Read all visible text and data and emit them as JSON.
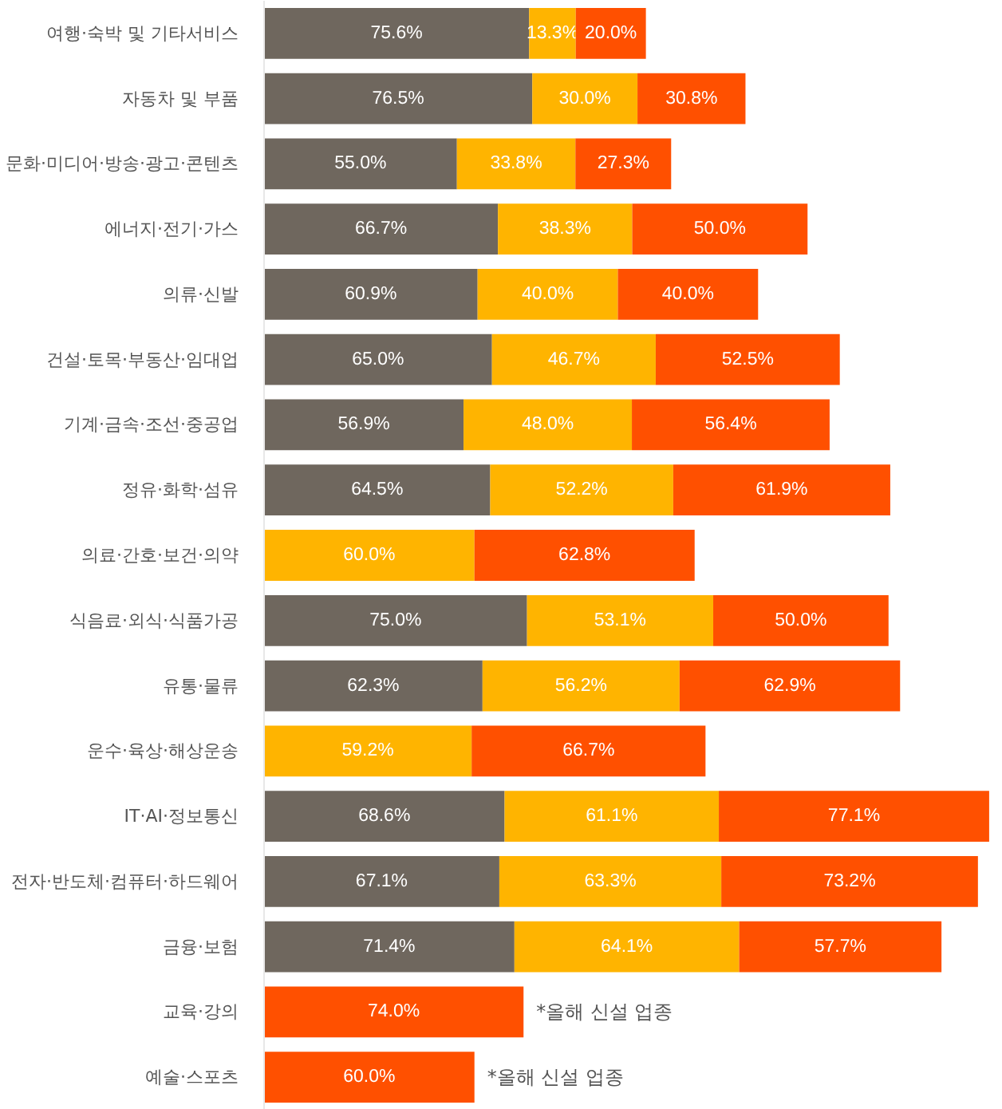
{
  "chart_data": {
    "type": "bar",
    "orientation": "horizontal",
    "stacked": true,
    "grid": false,
    "categories": [
      "여행·숙박 및 기타서비스",
      "자동차 및 부품",
      "문화·미디어·방송·광고·콘텐츠",
      "에너지·전기·가스",
      "의류·신발",
      "건설·토목·부동산·임대업",
      "기계·금속·조선·중공업",
      "정유·화학·섬유",
      "의료·간호·보건·의약",
      "식음료·외식·식품가공",
      "유통·물류",
      "운수·육상·해상운송",
      "IT·AI·정보통신",
      "전자·반도체·컴퓨터·하드웨어",
      "금융·보험",
      "교육·강의",
      "예술·스포츠"
    ],
    "series": [
      {
        "color": "#6f675e",
        "values": [
          75.6,
          76.5,
          55.0,
          66.7,
          60.9,
          65.0,
          56.9,
          64.5,
          null,
          75.0,
          62.3,
          null,
          68.6,
          67.1,
          71.4,
          null,
          null
        ],
        "value_labels": [
          "75.6%",
          "76.5%",
          "55.0%",
          "66.7%",
          "60.9%",
          "65.0%",
          "56.9%",
          "64.5%",
          null,
          "75.0%",
          "62.3%",
          null,
          "68.6%",
          "67.1%",
          "71.4%",
          null,
          null
        ]
      },
      {
        "color": "#ffb400",
        "values": [
          13.3,
          30.0,
          33.8,
          38.3,
          40.0,
          46.7,
          48.0,
          52.2,
          60.0,
          53.1,
          56.2,
          59.2,
          61.1,
          63.3,
          64.1,
          null,
          null
        ],
        "value_labels": [
          "13.3%",
          "30.0%",
          "33.8%",
          "38.3%",
          "40.0%",
          "46.7%",
          "48.0%",
          "52.2%",
          "60.0%",
          "53.1%",
          "56.2%",
          "59.2%",
          "61.1%",
          "63.3%",
          "64.1%",
          null,
          null
        ]
      },
      {
        "color": "#ff5000",
        "values": [
          20.0,
          30.8,
          27.3,
          50.0,
          40.0,
          52.5,
          56.4,
          61.9,
          62.8,
          50.0,
          62.9,
          66.7,
          77.1,
          73.2,
          57.7,
          74.0,
          60.0
        ],
        "value_labels": [
          "20.0%",
          "30.8%",
          "27.3%",
          "50.0%",
          "40.0%",
          "52.5%",
          "56.4%",
          "61.9%",
          "62.8%",
          "50.0%",
          "62.9%",
          "66.7%",
          "77.1%",
          "73.2%",
          "57.7%",
          "74.0%",
          "60.0%"
        ]
      }
    ],
    "annotations": [
      {
        "text": "*올해 신설 업종",
        "x": 74.0,
        "y": "교육·강의"
      },
      {
        "text": "*올해 신설 업종",
        "x": 60.0,
        "y": "예술·스포츠"
      }
    ]
  }
}
